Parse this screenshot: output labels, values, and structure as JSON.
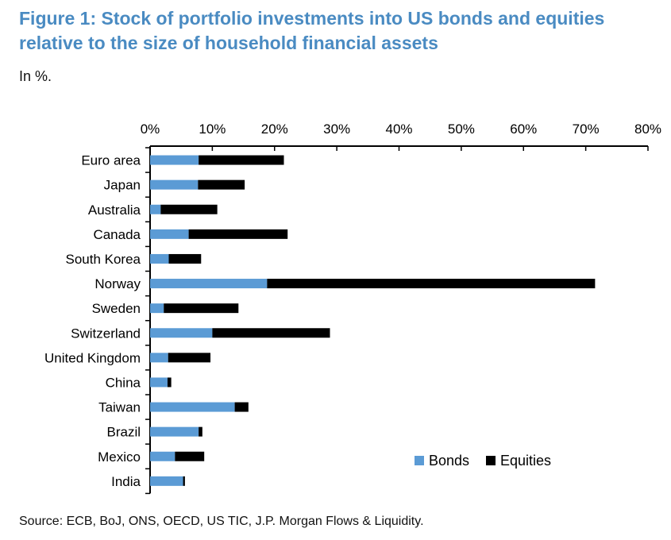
{
  "chart_data": {
    "type": "bar",
    "orientation": "horizontal",
    "stacked": true,
    "title": "Figure 1: Stock of portfolio investments into US bonds and equities relative to the size of household financial assets",
    "subtitle": "In %.",
    "source": "Source: ECB, BoJ, ONS, OECD, US TIC, J.P. Morgan Flows & Liquidity.",
    "categories": [
      "Euro area",
      "Japan",
      "Australia",
      "Canada",
      "South Korea",
      "Norway",
      "Sweden",
      "Switzerland",
      "United Kingdom",
      "China",
      "Taiwan",
      "Brazil",
      "Mexico",
      "India"
    ],
    "series": [
      {
        "name": "Bonds",
        "color": "#5b9bd5",
        "values": [
          7.8,
          7.7,
          1.7,
          6.2,
          3.0,
          18.8,
          2.2,
          10.0,
          2.9,
          2.8,
          13.6,
          7.8,
          4.0,
          5.3
        ]
      },
      {
        "name": "Equities",
        "color": "#000000",
        "values": [
          13.7,
          7.5,
          9.1,
          15.9,
          5.2,
          52.7,
          12.0,
          18.9,
          6.8,
          0.6,
          2.2,
          0.6,
          4.7,
          0.3
        ]
      }
    ],
    "xlim": [
      0,
      80
    ],
    "xticks": [
      "0%",
      "10%",
      "20%",
      "30%",
      "40%",
      "50%",
      "60%",
      "70%",
      "80%"
    ],
    "xaxis_position": "top",
    "grid": false,
    "legend_position": "bottom-right"
  }
}
